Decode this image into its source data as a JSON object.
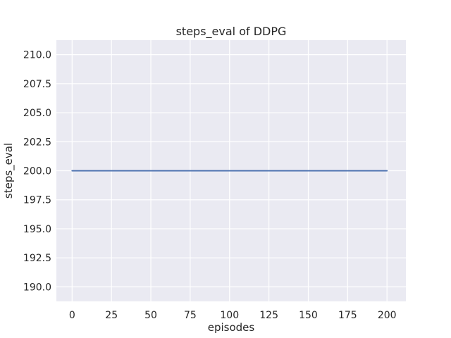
{
  "chart_data": {
    "type": "line",
    "title": "steps_eval of DDPG",
    "xlabel": "episodes",
    "ylabel": "steps_eval",
    "x_tick_values": [
      0,
      25,
      50,
      75,
      100,
      125,
      150,
      175,
      200
    ],
    "x_tick_labels": [
      "0",
      "25",
      "50",
      "75",
      "100",
      "125",
      "150",
      "175",
      "200"
    ],
    "y_tick_values": [
      190.0,
      192.5,
      195.0,
      197.5,
      200.0,
      202.5,
      205.0,
      207.5,
      210.0
    ],
    "y_tick_labels": [
      "190.0",
      "192.5",
      "195.0",
      "197.5",
      "200.0",
      "202.5",
      "205.0",
      "207.5",
      "210.0"
    ],
    "xlim": [
      -10,
      212
    ],
    "ylim": [
      188.75,
      211.25
    ],
    "grid": true,
    "legend_position": "none",
    "series": [
      {
        "name": "steps_eval of DDPG",
        "x": [
          0,
          200
        ],
        "y": [
          200,
          200
        ],
        "color": "#4C72B0"
      }
    ],
    "style": {
      "figure_bg": "#FFFFFF",
      "plot_bg": "#EAEAF2",
      "grid_color": "#FFFFFF",
      "text_color": "#262626",
      "line_width": 2
    }
  }
}
